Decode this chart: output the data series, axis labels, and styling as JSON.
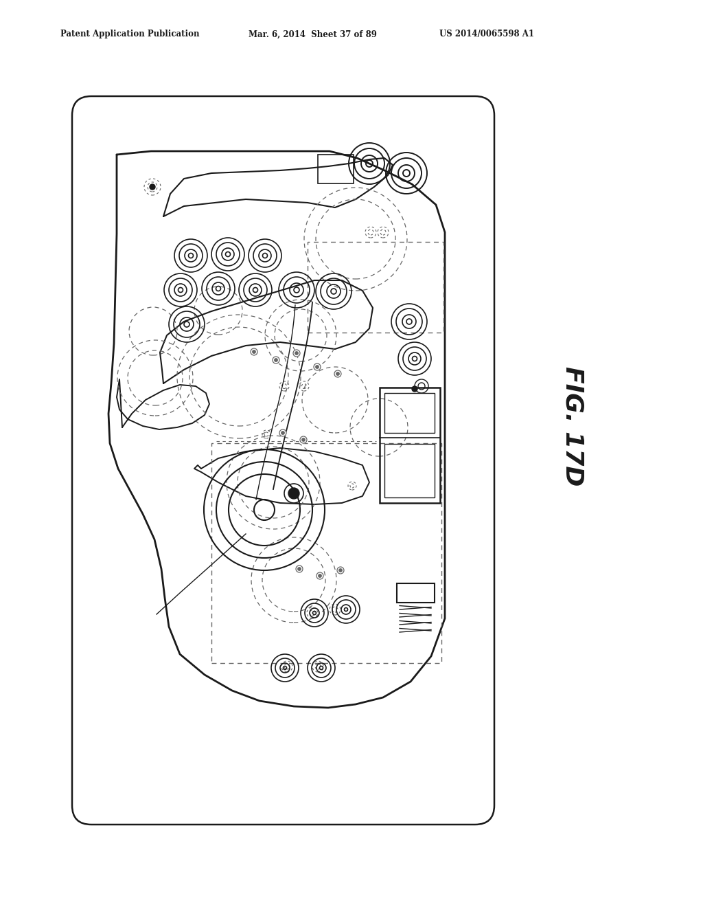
{
  "header_left": "Patent Application Publication",
  "header_center": "Mar. 6, 2014  Sheet 37 of 89",
  "header_right": "US 2014/0065598 A1",
  "fig_label": "FIG. 17D",
  "bg_color": "#ffffff",
  "line_color": "#1a1a1a",
  "dash_color": "#666666"
}
